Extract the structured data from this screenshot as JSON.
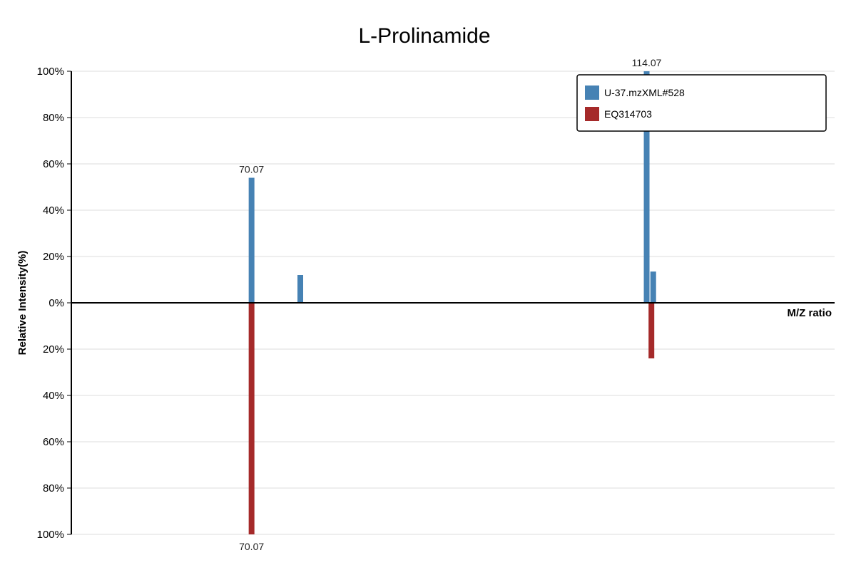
{
  "chart_data": {
    "type": "bar",
    "title": "L-Prolinamide",
    "xlabel": "M/Z ratio",
    "ylabel": "Relative Intensity(%)",
    "y_ticks_top": [
      "100%",
      "80%",
      "60%",
      "40%",
      "20%",
      "0%"
    ],
    "y_ticks_bottom": [
      "20%",
      "40%",
      "60%",
      "80%",
      "100%"
    ],
    "ylim": [
      -100,
      100
    ],
    "x_range": [
      50,
      135
    ],
    "grid": true,
    "legend_position": "top-right",
    "series": [
      {
        "name": "U-37.mzXML#528",
        "color": "#4682b4",
        "direction": "up",
        "peaks": [
          {
            "mz": 70.07,
            "intensity": 54,
            "label": "70.07"
          },
          {
            "mz": 75.5,
            "intensity": 12,
            "label": ""
          },
          {
            "mz": 114.07,
            "intensity": 100,
            "label": "114.07"
          },
          {
            "mz": 114.8,
            "intensity": 13.5,
            "label": ""
          }
        ]
      },
      {
        "name": "EQ314703",
        "color": "#a52a2a",
        "direction": "down",
        "peaks": [
          {
            "mz": 70.07,
            "intensity": 100,
            "label": "70.07"
          },
          {
            "mz": 114.6,
            "intensity": 24,
            "label": ""
          }
        ]
      }
    ]
  }
}
